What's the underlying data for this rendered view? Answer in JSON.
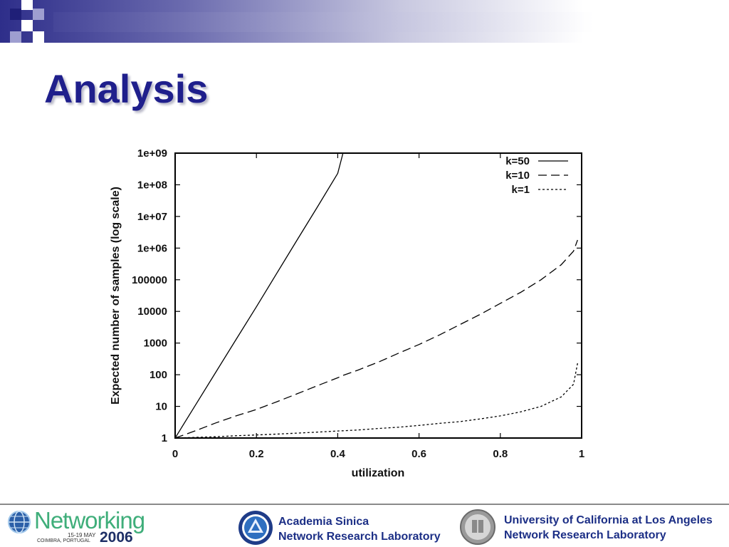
{
  "slide": {
    "title": "Analysis"
  },
  "chart_data": {
    "type": "line",
    "xlabel": "utilization",
    "ylabel": "Expected number of samples (log scale)",
    "xlim": [
      0,
      1
    ],
    "ylim": [
      1,
      1000000000
    ],
    "yscale": "log",
    "grid": false,
    "legend_position": "top-right",
    "x_ticks": [
      "0",
      "0.2",
      "0.4",
      "0.6",
      "0.8",
      "1"
    ],
    "y_ticks": [
      "1",
      "10",
      "100",
      "1000",
      "10000",
      "100000",
      "1e+06",
      "1e+07",
      "1e+08",
      "1e+09"
    ],
    "x": [
      0,
      0.05,
      0.1,
      0.15,
      0.2,
      0.25,
      0.3,
      0.35,
      0.4,
      0.413,
      0.45,
      0.5,
      0.55,
      0.6,
      0.65,
      0.7,
      0.75,
      0.8,
      0.85,
      0.9,
      0.95,
      0.98,
      0.99
    ],
    "series": [
      {
        "name": "k=50",
        "style": "solid",
        "values": [
          1,
          11,
          120,
          1300,
          14000,
          160000,
          1800000,
          20000000,
          230000000,
          1000000000,
          null,
          null,
          null,
          null,
          null,
          null,
          null,
          null,
          null,
          null,
          null,
          null,
          null
        ]
      },
      {
        "name": "k=10",
        "style": "dashed",
        "values": [
          1,
          1.7,
          3,
          5,
          8,
          14,
          25,
          45,
          80,
          95,
          140,
          250,
          480,
          900,
          1800,
          3800,
          8000,
          18000,
          40000,
          100000,
          300000,
          800000,
          1800000
        ]
      },
      {
        "name": "k=1",
        "style": "dotted",
        "values": [
          1,
          1.05,
          1.1,
          1.18,
          1.25,
          1.33,
          1.43,
          1.54,
          1.67,
          1.7,
          1.8,
          2,
          2.2,
          2.5,
          2.9,
          3.3,
          4,
          5,
          6.7,
          10,
          20,
          50,
          230
        ]
      }
    ]
  },
  "footer": {
    "conference_name": "Networking",
    "conference_dates": "15-19 MAY",
    "conference_year": "2006",
    "conference_place": "COIMBRA, PORTUGAL",
    "institution_1_line1": "Academia Sinica",
    "institution_1_line2": "Network Research Laboratory",
    "institution_2_line1": "University of California at Los Angeles",
    "institution_2_line2": "Network Research Laboratory"
  },
  "colors": {
    "title": "#1f1f8c",
    "header_dark": "#1f1f78",
    "networking_green": "#3fae7a",
    "institution_blue": "#1c2f86"
  },
  "icons": [
    "networking-globe-icon",
    "academia-sinica-seal-icon",
    "ucla-seal-icon"
  ]
}
